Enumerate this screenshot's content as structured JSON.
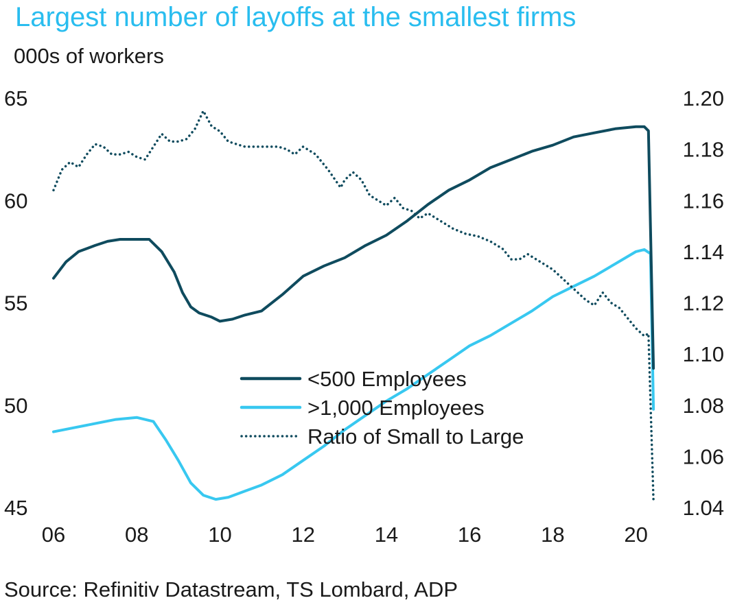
{
  "colors": {
    "title": "#29bdef",
    "dark_series": "#0f4b5e",
    "light_series": "#38c8f0",
    "text": "#1a1a1a",
    "background": "#ffffff"
  },
  "chart_data": {
    "type": "line",
    "title": "Largest number of layoffs at the smallest firms",
    "ylabel": "000s of workers",
    "source": "Source: Refinitiv Datastream, TS Lombard, ADP",
    "xlim": [
      2006,
      2020.6
    ],
    "ylim_left": [
      45,
      65
    ],
    "ylim_right": [
      1.04,
      1.2
    ],
    "x_ticks": [
      {
        "value": 2006,
        "label": "06"
      },
      {
        "value": 2008,
        "label": "08"
      },
      {
        "value": 2010,
        "label": "10"
      },
      {
        "value": 2012,
        "label": "12"
      },
      {
        "value": 2014,
        "label": "14"
      },
      {
        "value": 2016,
        "label": "16"
      },
      {
        "value": 2018,
        "label": "18"
      },
      {
        "value": 2020,
        "label": "20"
      }
    ],
    "y_ticks_left": [
      {
        "value": 65,
        "label": "65"
      },
      {
        "value": 60,
        "label": "60"
      },
      {
        "value": 55,
        "label": "55"
      },
      {
        "value": 50,
        "label": "50"
      },
      {
        "value": 45,
        "label": "45"
      }
    ],
    "y_ticks_right": [
      {
        "value": 1.2,
        "label": "1.20"
      },
      {
        "value": 1.18,
        "label": "1.18"
      },
      {
        "value": 1.16,
        "label": "1.16"
      },
      {
        "value": 1.14,
        "label": "1.14"
      },
      {
        "value": 1.12,
        "label": "1.12"
      },
      {
        "value": 1.1,
        "label": "1.10"
      },
      {
        "value": 1.08,
        "label": "1.08"
      },
      {
        "value": 1.06,
        "label": "1.06"
      },
      {
        "value": 1.04,
        "label": "1.04"
      }
    ],
    "legend": {
      "placement": "center-right"
    },
    "series": [
      {
        "name": "<500 Employees",
        "axis": "left",
        "style": "solid",
        "color": "#0f4b5e",
        "x": [
          2006.0,
          2006.3,
          2006.6,
          2007.0,
          2007.3,
          2007.6,
          2008.0,
          2008.3,
          2008.6,
          2008.9,
          2009.1,
          2009.3,
          2009.5,
          2009.8,
          2010.0,
          2010.3,
          2010.6,
          2011.0,
          2011.5,
          2012.0,
          2012.5,
          2013.0,
          2013.5,
          2014.0,
          2014.5,
          2015.0,
          2015.5,
          2016.0,
          2016.5,
          2017.0,
          2017.5,
          2018.0,
          2018.5,
          2019.0,
          2019.5,
          2020.0,
          2020.2,
          2020.3,
          2020.42
        ],
        "values": [
          56.2,
          57.0,
          57.5,
          57.8,
          58.0,
          58.1,
          58.1,
          58.1,
          57.5,
          56.5,
          55.5,
          54.8,
          54.5,
          54.3,
          54.1,
          54.2,
          54.4,
          54.6,
          55.4,
          56.3,
          56.8,
          57.2,
          57.8,
          58.3,
          59.0,
          59.8,
          60.5,
          61.0,
          61.6,
          62.0,
          62.4,
          62.7,
          63.1,
          63.3,
          63.5,
          63.6,
          63.6,
          63.4,
          51.8
        ]
      },
      {
        "name": ">1,000 Employees",
        "axis": "left",
        "style": "solid",
        "color": "#38c8f0",
        "x": [
          2006.0,
          2006.5,
          2007.0,
          2007.5,
          2008.0,
          2008.4,
          2008.7,
          2009.0,
          2009.3,
          2009.6,
          2009.9,
          2010.2,
          2010.6,
          2011.0,
          2011.5,
          2012.0,
          2012.5,
          2013.0,
          2013.5,
          2014.0,
          2014.5,
          2015.0,
          2015.5,
          2016.0,
          2016.5,
          2017.0,
          2017.5,
          2018.0,
          2018.5,
          2019.0,
          2019.5,
          2020.0,
          2020.2,
          2020.35,
          2020.42
        ],
        "values": [
          48.7,
          48.9,
          49.1,
          49.3,
          49.4,
          49.2,
          48.3,
          47.3,
          46.2,
          45.6,
          45.4,
          45.5,
          45.8,
          46.1,
          46.6,
          47.3,
          48.0,
          48.8,
          49.5,
          50.2,
          50.8,
          51.5,
          52.2,
          52.9,
          53.4,
          54.0,
          54.6,
          55.3,
          55.8,
          56.3,
          56.9,
          57.5,
          57.6,
          57.4,
          49.8
        ]
      },
      {
        "name": "Ratio of Small to Large",
        "axis": "right",
        "style": "dotted",
        "color": "#0f4b5e",
        "x": [
          2006.0,
          2006.2,
          2006.4,
          2006.6,
          2006.8,
          2007.0,
          2007.2,
          2007.4,
          2007.6,
          2007.8,
          2008.0,
          2008.2,
          2008.4,
          2008.6,
          2008.8,
          2009.0,
          2009.2,
          2009.4,
          2009.6,
          2009.8,
          2010.0,
          2010.2,
          2010.4,
          2010.6,
          2010.8,
          2011.0,
          2011.2,
          2011.4,
          2011.6,
          2011.8,
          2012.0,
          2012.3,
          2012.6,
          2012.9,
          2013.0,
          2013.2,
          2013.4,
          2013.6,
          2013.8,
          2014.0,
          2014.2,
          2014.4,
          2014.6,
          2014.8,
          2015.0,
          2015.3,
          2015.6,
          2015.9,
          2016.2,
          2016.5,
          2016.8,
          2017.0,
          2017.2,
          2017.4,
          2017.6,
          2017.8,
          2018.0,
          2018.2,
          2018.4,
          2018.6,
          2018.8,
          2019.0,
          2019.2,
          2019.4,
          2019.6,
          2019.8,
          2020.0,
          2020.2,
          2020.3,
          2020.42
        ],
        "values": [
          1.164,
          1.172,
          1.175,
          1.173,
          1.178,
          1.182,
          1.181,
          1.178,
          1.178,
          1.179,
          1.177,
          1.176,
          1.181,
          1.186,
          1.183,
          1.183,
          1.184,
          1.188,
          1.195,
          1.189,
          1.187,
          1.183,
          1.182,
          1.181,
          1.181,
          1.181,
          1.181,
          1.181,
          1.18,
          1.178,
          1.181,
          1.178,
          1.172,
          1.165,
          1.168,
          1.171,
          1.168,
          1.162,
          1.16,
          1.158,
          1.161,
          1.157,
          1.156,
          1.153,
          1.155,
          1.152,
          1.149,
          1.147,
          1.146,
          1.144,
          1.141,
          1.137,
          1.137,
          1.139,
          1.137,
          1.135,
          1.133,
          1.13,
          1.127,
          1.124,
          1.121,
          1.119,
          1.124,
          1.12,
          1.118,
          1.114,
          1.11,
          1.107,
          1.108,
          1.043
        ]
      }
    ]
  }
}
